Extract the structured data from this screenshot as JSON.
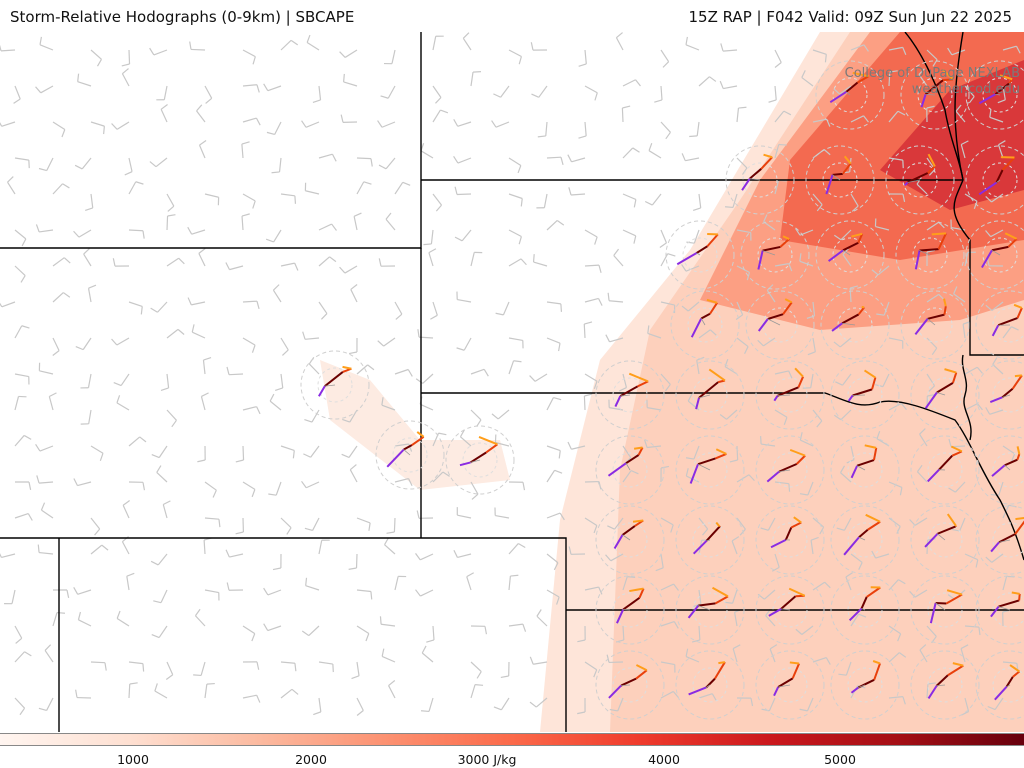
{
  "header": {
    "left_title": "Storm-Relative Hodographs (0-9km) | SBCAPE",
    "right_title": "15Z RAP | F042 Valid: 09Z Sun Jun 22 2025"
  },
  "credit": {
    "line1": "College of DuPage NEXLAB",
    "line2": "weather.cod.edu"
  },
  "colorbar": {
    "labels": [
      "1000",
      "2000",
      "3000 J/kg",
      "4000",
      "5000"
    ],
    "stops": [
      "#fff5f0",
      "#fee0d2",
      "#fcbba1",
      "#fc9272",
      "#fb6a4a",
      "#ef3b2c",
      "#cb181d",
      "#a50f15",
      "#67000d"
    ]
  },
  "map": {
    "hodograph_colors": {
      "low": "#6b0000",
      "mid": "#e8400c",
      "upper": "#ff9e1a",
      "top": "#8a2be2"
    },
    "wind_barb_color": "#c8c8c8",
    "boundary_color": "#000000"
  }
}
